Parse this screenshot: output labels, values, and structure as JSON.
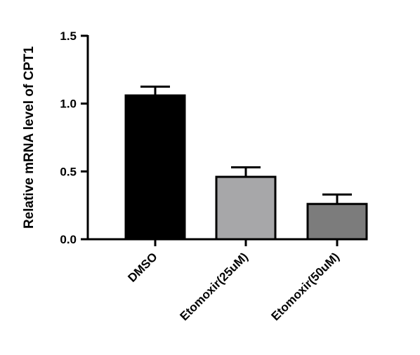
{
  "chart_data": {
    "type": "bar",
    "title": "",
    "xlabel": "",
    "ylabel": "Relative mRNA level of CPT1",
    "ylim": [
      0,
      1.5
    ],
    "yticks": [
      "0.0",
      "0.5",
      "1.0",
      "1.5"
    ],
    "categories": [
      "DMSO",
      "Etomoxir(25uM)",
      "Etomoxir(50uM)"
    ],
    "values": [
      1.06,
      0.46,
      0.26
    ],
    "error_upper": [
      0.065,
      0.07,
      0.07
    ],
    "bar_colors": [
      "#000000",
      "#a7a7a9",
      "#7c7c7c"
    ],
    "bar_edge_color": "#000000",
    "grid": false,
    "legend": "none"
  }
}
